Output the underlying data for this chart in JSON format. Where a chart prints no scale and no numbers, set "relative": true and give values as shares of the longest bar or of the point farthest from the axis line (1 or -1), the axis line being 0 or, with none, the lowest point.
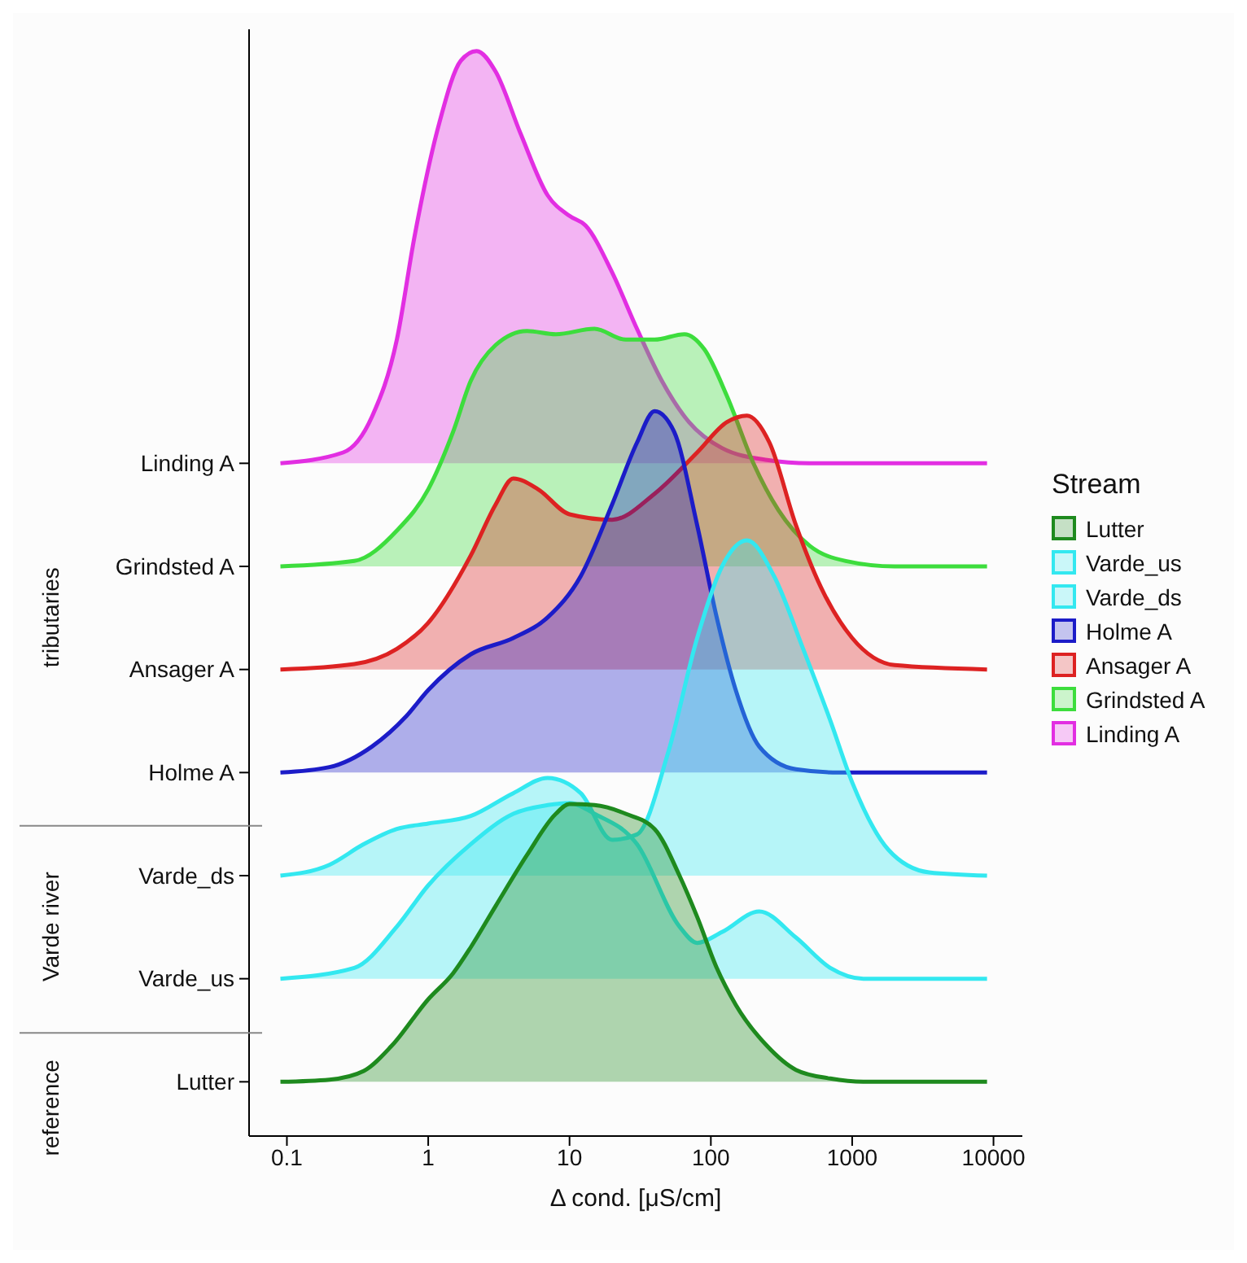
{
  "chart_data": {
    "type": "area",
    "relative": true,
    "xlabel": "Δ cond. [μS/cm]",
    "legend_title": "Stream",
    "legend": "right",
    "log": "x",
    "xlim": [
      0.054,
      16000
    ],
    "xticks": [
      0.1,
      1,
      10,
      100,
      1000,
      10000
    ],
    "annotations": [
      "Lutter",
      "Varde_us",
      "Varde_ds",
      "Holme A",
      "Ansager A",
      "Grindsted A",
      "Linding A",
      "tributaries",
      "Varde river",
      "reference"
    ],
    "series": [
      {
        "name": "Lutter",
        "color": "#1e8a1e",
        "x": [
          0.09,
          0.2,
          0.35,
          0.55,
          1,
          1.5,
          2,
          3,
          5,
          8,
          10,
          15,
          25,
          40,
          60,
          80,
          110,
          150,
          250,
          400,
          700,
          1200,
          9000
        ],
        "values": [
          0.05,
          0.052,
          0.06,
          0.083,
          0.126,
          0.15,
          0.174,
          0.212,
          0.259,
          0.297,
          0.306,
          0.305,
          0.297,
          0.283,
          0.24,
          0.202,
          0.155,
          0.121,
          0.083,
          0.061,
          0.053,
          0.05,
          0.05
        ]
      },
      {
        "name": "Varde_us",
        "color": "#33e8f0",
        "x": [
          0.09,
          0.3,
          0.6,
          1,
          2,
          4,
          7,
          10,
          15,
          30,
          60,
          80,
          120,
          220,
          400,
          700,
          1200,
          9000
        ],
        "values": [
          0.145,
          0.155,
          0.193,
          0.231,
          0.269,
          0.297,
          0.305,
          0.307,
          0.297,
          0.269,
          0.193,
          0.178,
          0.188,
          0.207,
          0.183,
          0.155,
          0.145,
          0.145
        ]
      },
      {
        "name": "Varde_ds",
        "color": "#33e8f0",
        "x": [
          0.09,
          0.2,
          0.35,
          0.6,
          1,
          2,
          4,
          7,
          12,
          20,
          30,
          50,
          80,
          120,
          180,
          280,
          450,
          700,
          1000,
          1800,
          3500,
          9000
        ],
        "values": [
          0.24,
          0.25,
          0.269,
          0.283,
          0.288,
          0.295,
          0.316,
          0.33,
          0.316,
          0.273,
          0.278,
          0.354,
          0.459,
          0.525,
          0.549,
          0.516,
          0.449,
          0.383,
          0.326,
          0.264,
          0.243,
          0.24
        ]
      },
      {
        "name": "Holme A",
        "color": "#1c1cc8",
        "x": [
          0.09,
          0.2,
          0.4,
          0.7,
          1,
          2,
          4,
          7,
          12,
          20,
          30,
          40,
          55,
          80,
          110,
          150,
          220,
          400,
          800,
          9000
        ],
        "values": [
          0.335,
          0.34,
          0.359,
          0.387,
          0.411,
          0.444,
          0.459,
          0.478,
          0.516,
          0.582,
          0.639,
          0.668,
          0.649,
          0.563,
          0.478,
          0.411,
          0.359,
          0.338,
          0.335,
          0.335
        ]
      },
      {
        "name": "Ansager A",
        "color": "#dd2222",
        "x": [
          0.09,
          0.3,
          0.6,
          1,
          2,
          3,
          4,
          6,
          10,
          20,
          40,
          80,
          130,
          180,
          260,
          400,
          600,
          1000,
          2000,
          9000
        ],
        "values": [
          0.43,
          0.435,
          0.449,
          0.473,
          0.535,
          0.582,
          0.606,
          0.596,
          0.573,
          0.568,
          0.592,
          0.63,
          0.658,
          0.664,
          0.639,
          0.563,
          0.506,
          0.459,
          0.434,
          0.43
        ]
      },
      {
        "name": "Grindsted A",
        "color": "#3ddd3d",
        "x": [
          0.09,
          0.3,
          0.6,
          1,
          1.5,
          2,
          3,
          5,
          8,
          15,
          25,
          40,
          65,
          90,
          130,
          200,
          300,
          500,
          900,
          2000,
          9000
        ],
        "values": [
          0.525,
          0.53,
          0.558,
          0.596,
          0.649,
          0.696,
          0.729,
          0.742,
          0.739,
          0.744,
          0.734,
          0.734,
          0.739,
          0.725,
          0.682,
          0.62,
          0.577,
          0.544,
          0.53,
          0.525,
          0.525
        ]
      },
      {
        "name": "Linding A",
        "color": "#e22ee2",
        "x": [
          0.09,
          0.25,
          0.4,
          0.6,
          0.8,
          1.2,
          1.7,
          2.2,
          3,
          4.5,
          7,
          10,
          13,
          20,
          30,
          45,
          70,
          120,
          250,
          500,
          9000
        ],
        "values": [
          0.62,
          0.63,
          0.663,
          0.734,
          0.829,
          0.934,
          0.991,
          1,
          0.981,
          0.924,
          0.867,
          0.848,
          0.839,
          0.796,
          0.744,
          0.696,
          0.658,
          0.634,
          0.623,
          0.62,
          0.62
        ]
      }
    ]
  }
}
